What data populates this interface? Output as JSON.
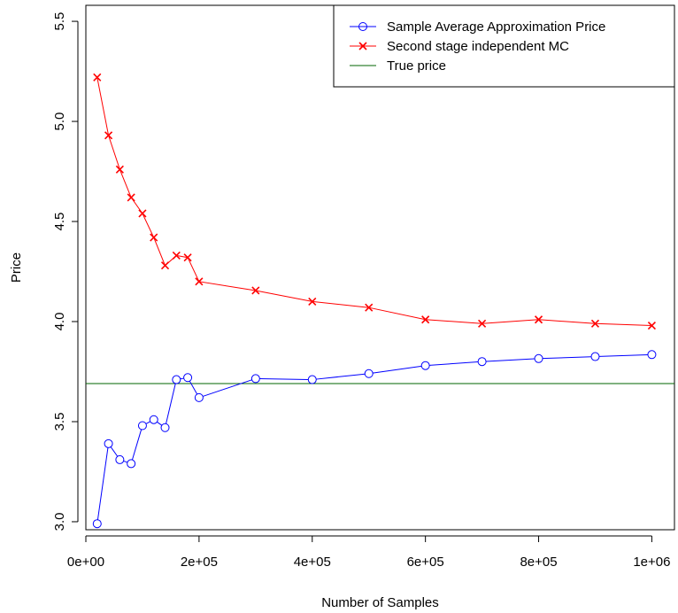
{
  "chart_data": {
    "type": "line",
    "title": "",
    "xlabel": "Number of Samples",
    "ylabel": "Price",
    "xlim": [
      0,
      1040000
    ],
    "ylim": [
      2.96,
      5.58
    ],
    "x_ticks": [
      0,
      200000,
      400000,
      600000,
      800000,
      1000000
    ],
    "x_tick_labels": [
      "0e+00",
      "2e+05",
      "4e+05",
      "6e+05",
      "8e+05",
      "1e+06"
    ],
    "y_ticks": [
      3.0,
      3.5,
      4.0,
      4.5,
      5.0,
      5.5
    ],
    "y_tick_labels": [
      "3.0",
      "3.5",
      "4.0",
      "4.5",
      "5.0",
      "5.5"
    ],
    "grid": false,
    "legend_position": "top-right",
    "x": [
      20000,
      40000,
      60000,
      80000,
      100000,
      120000,
      140000,
      160000,
      180000,
      200000,
      300000,
      400000,
      500000,
      600000,
      700000,
      800000,
      900000,
      1000000
    ],
    "series": [
      {
        "name": "Sample Average Approximation Price",
        "color": "#0000ff",
        "marker": "circle",
        "values": [
          2.99,
          3.39,
          3.31,
          3.29,
          3.48,
          3.51,
          3.47,
          3.71,
          3.72,
          3.62,
          3.715,
          3.71,
          3.74,
          3.78,
          3.8,
          3.815,
          3.825,
          3.835
        ]
      },
      {
        "name": "Second stage independent MC",
        "color": "#ff0000",
        "marker": "cross",
        "values": [
          5.22,
          4.93,
          4.76,
          4.62,
          4.54,
          4.42,
          4.28,
          4.33,
          4.32,
          4.2,
          4.155,
          4.1,
          4.07,
          4.01,
          3.99,
          4.01,
          3.99,
          3.98
        ]
      }
    ],
    "hlines": [
      {
        "name": "True price",
        "color": "#006400",
        "value": 3.69
      }
    ]
  }
}
